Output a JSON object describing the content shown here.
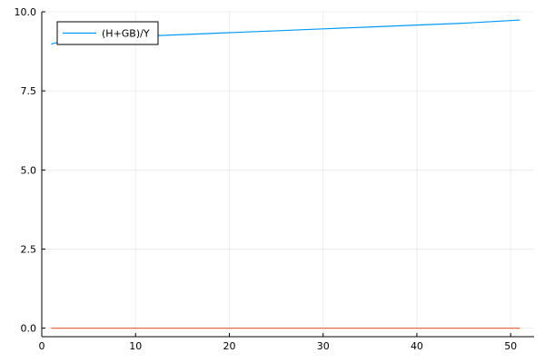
{
  "chart_data": {
    "type": "line",
    "title": "",
    "xlabel": "",
    "ylabel": "",
    "xlim": [
      0,
      52.5
    ],
    "ylim": [
      -0.27,
      10.0
    ],
    "xticks": [
      0,
      10,
      20,
      30,
      40,
      50
    ],
    "yticks": [
      0.0,
      2.5,
      5.0,
      7.5,
      10.0
    ],
    "xtick_labels": [
      "0",
      "10",
      "20",
      "30",
      "40",
      "50"
    ],
    "ytick_labels": [
      "0.0",
      "2.5",
      "5.0",
      "7.5",
      "10.0"
    ],
    "grid": true,
    "legend_position": "top-left",
    "series": [
      {
        "name": "(H+GB)/Y",
        "color": "#009AFA",
        "in_legend": true,
        "x": [
          1,
          2,
          3,
          4,
          5,
          10,
          15,
          20,
          25,
          30,
          35,
          40,
          45,
          51
        ],
        "y": [
          8.98,
          9.06,
          9.1,
          9.13,
          9.15,
          9.22,
          9.28,
          9.34,
          9.4,
          9.46,
          9.52,
          9.58,
          9.64,
          9.74
        ]
      },
      {
        "color": "#E36F47",
        "in_legend": false,
        "x": [
          1,
          51
        ],
        "y": [
          0.0,
          0.0
        ]
      }
    ]
  }
}
